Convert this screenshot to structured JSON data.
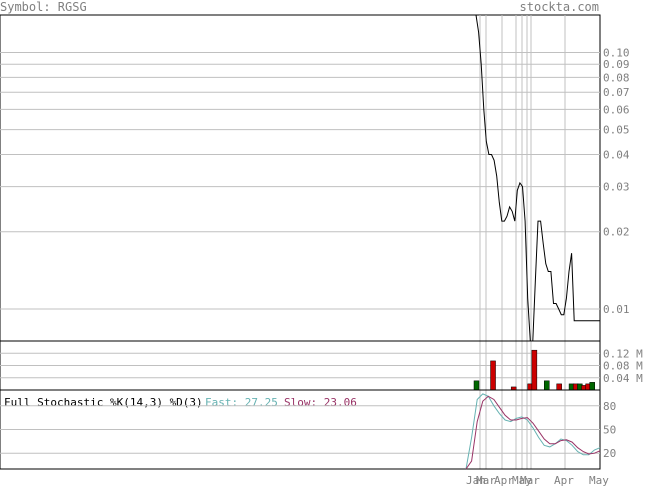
{
  "header": {
    "symbol_label": "Symbol: RGSG",
    "site_label": "stockta.com"
  },
  "colors": {
    "price_line": "#000000",
    "grid": "#c0c0c0",
    "vol_up": "#006600",
    "vol_down": "#cc0000",
    "fast": "#66b2b2",
    "slow": "#993366",
    "frame": "#000000"
  },
  "chart_data": [
    {
      "type": "line",
      "name": "price",
      "scale": "log",
      "ylim": [
        0.0075,
        0.14
      ],
      "y_ticks": [
        "0.10",
        "0.09",
        "0.08",
        "0.07",
        "0.06",
        "0.05",
        "0.04",
        "0.03",
        "0.02",
        "0.01"
      ],
      "y_tick_values": [
        0.1,
        0.09,
        0.08,
        0.07,
        0.06,
        0.05,
        0.04,
        0.03,
        0.02,
        0.01
      ],
      "x": [
        0,
        1,
        2,
        3,
        4,
        5,
        6,
        7,
        8,
        9,
        10,
        11,
        12,
        13,
        14,
        15,
        16,
        17,
        18,
        19,
        20,
        21,
        22,
        23,
        24,
        25,
        26,
        27,
        28,
        29,
        30,
        31,
        32,
        33,
        34,
        35,
        36,
        37,
        38,
        39,
        40,
        41,
        42,
        43,
        44,
        45,
        46,
        47,
        48
      ],
      "values": [
        0.14,
        0.12,
        0.09,
        0.06,
        0.045,
        0.04,
        0.04,
        0.038,
        0.033,
        0.026,
        0.022,
        0.022,
        0.023,
        0.025,
        0.024,
        0.022,
        0.029,
        0.031,
        0.03,
        0.022,
        0.011,
        0.0075,
        0.0075,
        0.013,
        0.022,
        0.022,
        0.018,
        0.015,
        0.014,
        0.014,
        0.0105,
        0.0105,
        0.01,
        0.0095,
        0.0095,
        0.011,
        0.014,
        0.0165,
        0.009,
        0.009,
        0.009,
        0.009,
        0.009,
        0.009,
        0.009,
        0.009,
        0.009,
        0.009,
        0.009
      ]
    },
    {
      "type": "bar",
      "name": "volume",
      "y_ticks": [
        "0.12 M",
        "0.08 M",
        "0.04 M"
      ],
      "y_tick_values": [
        0.12,
        0.08,
        0.04
      ],
      "ylim": [
        0,
        0.16
      ],
      "bars": [
        {
          "x": 0,
          "value": 0.03,
          "dir": "up"
        },
        {
          "x": 4,
          "value": 0.095,
          "dir": "down"
        },
        {
          "x": 9,
          "value": 0.01,
          "dir": "down"
        },
        {
          "x": 13,
          "value": 0.02,
          "dir": "down"
        },
        {
          "x": 14,
          "value": 0.13,
          "dir": "down"
        },
        {
          "x": 17,
          "value": 0.03,
          "dir": "up"
        },
        {
          "x": 20,
          "value": 0.02,
          "dir": "down"
        },
        {
          "x": 23,
          "value": 0.02,
          "dir": "up"
        },
        {
          "x": 24,
          "value": 0.02,
          "dir": "down"
        },
        {
          "x": 25,
          "value": 0.02,
          "dir": "up"
        },
        {
          "x": 26,
          "value": 0.015,
          "dir": "down"
        },
        {
          "x": 27,
          "value": 0.02,
          "dir": "down"
        },
        {
          "x": 28,
          "value": 0.025,
          "dir": "up"
        }
      ]
    },
    {
      "type": "line",
      "name": "stochastic",
      "title": "Full Stochastic %K(14,3) %D(3)",
      "fast_label": "Fast: 27.25",
      "slow_label": "Slow: 23.06",
      "ylim": [
        0,
        100
      ],
      "y_ticks": [
        "80",
        "50",
        "20"
      ],
      "y_tick_values": [
        80,
        50,
        20
      ],
      "series": [
        {
          "name": "Fast",
          "values": [
            0,
            40,
            88,
            95,
            92,
            80,
            70,
            62,
            60,
            64,
            66,
            62,
            52,
            40,
            30,
            28,
            32,
            38,
            36,
            30,
            22,
            18,
            18,
            24,
            27
          ]
        },
        {
          "name": "Slow",
          "values": [
            0,
            10,
            60,
            86,
            92,
            88,
            78,
            68,
            62,
            62,
            64,
            65,
            58,
            48,
            38,
            32,
            32,
            36,
            37,
            34,
            27,
            22,
            19,
            20,
            23
          ]
        }
      ]
    }
  ],
  "x_axis": {
    "labels": [
      "Jan",
      "Mar",
      "Apr",
      "May",
      "Mar",
      "Apr",
      "May"
    ]
  }
}
